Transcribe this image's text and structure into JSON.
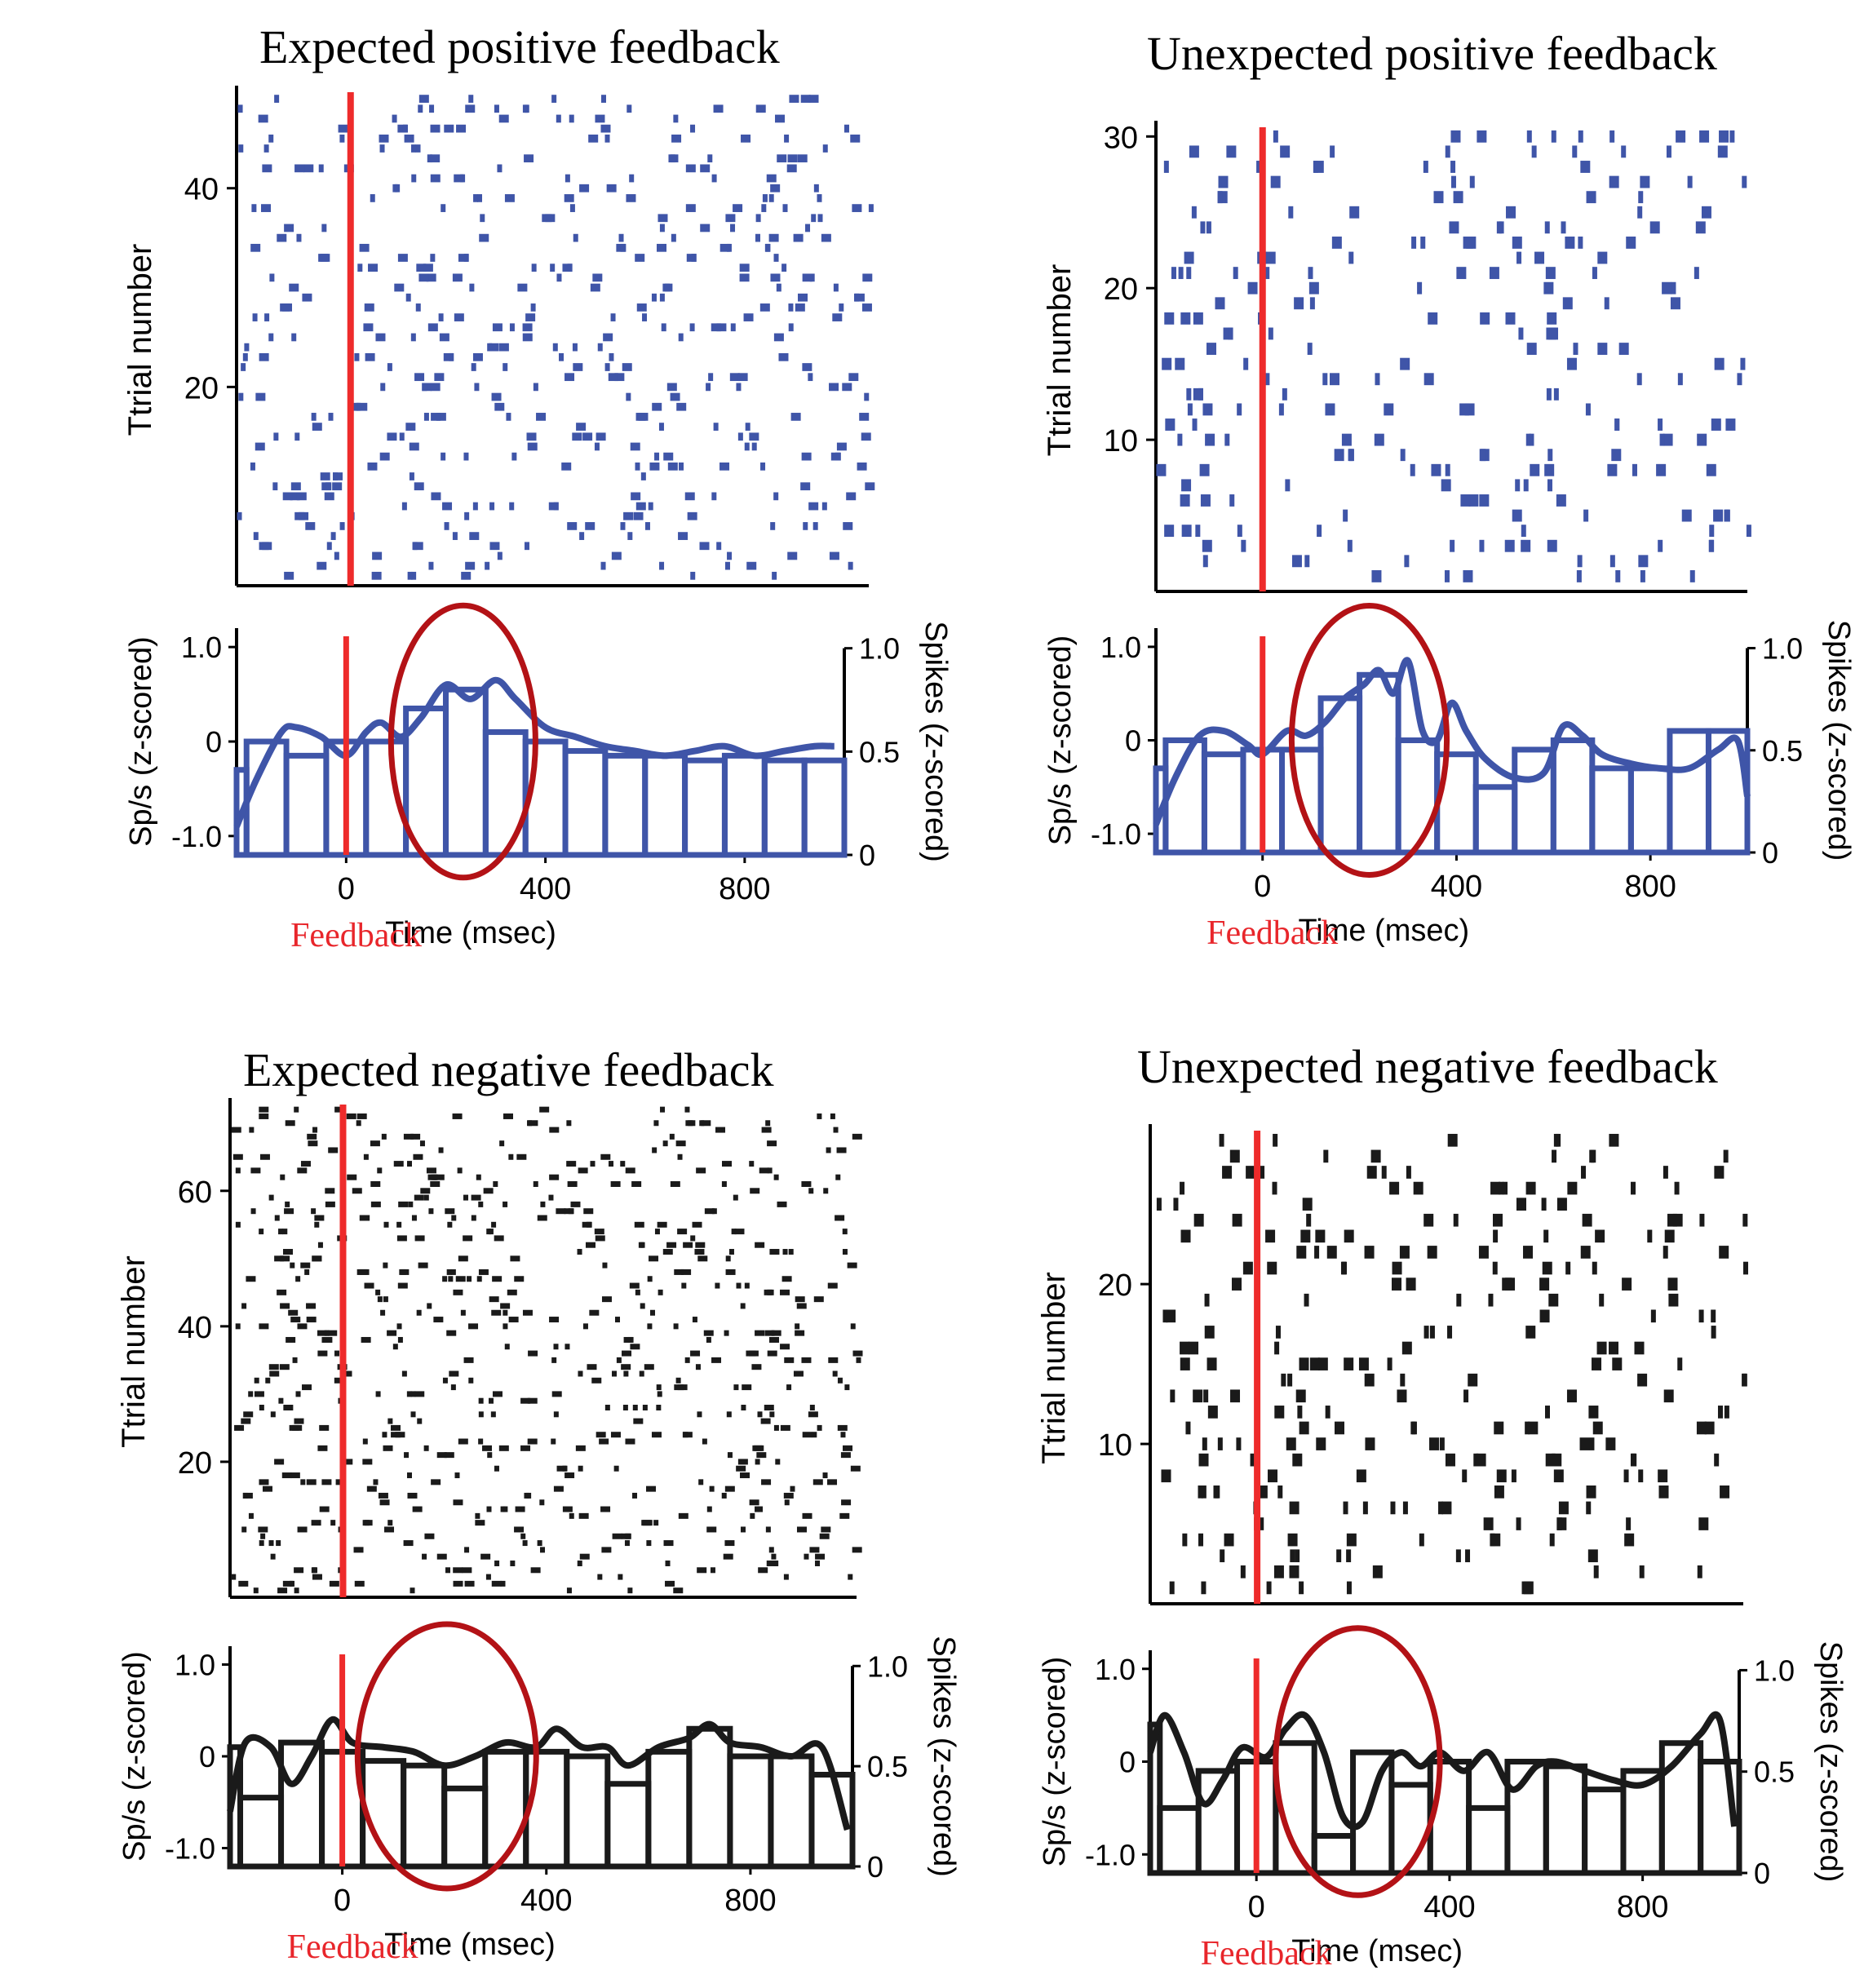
{
  "x_axis": {
    "label": "Time (msec)",
    "ticks": [
      0,
      400,
      800
    ],
    "range": [
      -220,
      1000
    ]
  },
  "raster_y_label": "Ttrial number",
  "psth_left_label": "Sp/s (z-scored)",
  "psth_right_label": "Spikes (z-scored)",
  "psth_left_ticks": [
    {
      "v": 1.0,
      "t": "1.0"
    },
    {
      "v": 0,
      "t": "0"
    },
    {
      "v": -1.0,
      "t": "-1.0"
    }
  ],
  "psth_right_ticks": [
    {
      "v": 1.0,
      "t": "1.0"
    },
    {
      "v": 0.5,
      "t": "0.5"
    },
    {
      "v": 0,
      "t": "0"
    }
  ],
  "feedback_label": "Feedback",
  "colors": {
    "blue": "#3f55a8",
    "black": "#1a1a1a",
    "feedback_line": "#ee2b2b",
    "ellipse": "#b31216",
    "feedback_text": "#e8262b"
  },
  "chart_data": [
    {
      "type": "raster+histogram",
      "title": "Expected positive feedback",
      "color": "blue",
      "trials": 49,
      "raster_ticks": [
        20,
        40
      ],
      "highlight_window_ms": [
        90,
        380
      ],
      "bin_centers_ms": [
        -240,
        -160,
        -80,
        0,
        80,
        160,
        240,
        320,
        400,
        480,
        560,
        640,
        720,
        800,
        880,
        960
      ],
      "psth_bins": [
        -0.3,
        0.0,
        -0.15,
        0.0,
        0.0,
        0.35,
        0.55,
        0.1,
        0.0,
        -0.1,
        -0.15,
        -0.15,
        -0.2,
        -0.15,
        -0.2,
        -0.2
      ],
      "psth_curve": [
        [
          -220,
          -0.9
        ],
        [
          -180,
          -0.4
        ],
        [
          -130,
          0.1
        ],
        [
          -100,
          0.15
        ],
        [
          -50,
          0.05
        ],
        [
          0,
          -0.15
        ],
        [
          40,
          0.1
        ],
        [
          70,
          0.2
        ],
        [
          110,
          0.05
        ],
        [
          150,
          0.25
        ],
        [
          200,
          0.6
        ],
        [
          250,
          0.45
        ],
        [
          300,
          0.65
        ],
        [
          340,
          0.45
        ],
        [
          400,
          0.15
        ],
        [
          460,
          0.05
        ],
        [
          520,
          -0.05
        ],
        [
          580,
          -0.1
        ],
        [
          640,
          -0.15
        ],
        [
          700,
          -0.1
        ],
        [
          760,
          -0.05
        ],
        [
          820,
          -0.15
        ],
        [
          880,
          -0.1
        ],
        [
          940,
          -0.05
        ],
        [
          980,
          -0.05
        ]
      ]
    },
    {
      "type": "raster+histogram",
      "title": "Unexpected positive feedback",
      "color": "blue",
      "trials": 30,
      "raster_ticks": [
        10,
        20,
        30
      ],
      "highlight_window_ms": [
        60,
        380
      ],
      "bin_centers_ms": [
        -240,
        -160,
        -80,
        0,
        80,
        160,
        240,
        320,
        400,
        480,
        560,
        640,
        720,
        800,
        880,
        960
      ],
      "psth_bins": [
        -0.3,
        0.0,
        -0.15,
        -0.1,
        -0.1,
        0.45,
        0.7,
        0.0,
        -0.15,
        -0.5,
        -0.1,
        0.0,
        -0.3,
        -0.3,
        0.1,
        0.1
      ],
      "psth_curve": [
        [
          -220,
          -0.9
        ],
        [
          -180,
          -0.4
        ],
        [
          -130,
          0.05
        ],
        [
          -80,
          0.1
        ],
        [
          -30,
          -0.05
        ],
        [
          0,
          -0.15
        ],
        [
          50,
          0.1
        ],
        [
          90,
          0.05
        ],
        [
          130,
          0.2
        ],
        [
          170,
          0.45
        ],
        [
          210,
          0.6
        ],
        [
          240,
          0.75
        ],
        [
          270,
          0.5
        ],
        [
          300,
          0.85
        ],
        [
          330,
          0.1
        ],
        [
          360,
          0.0
        ],
        [
          390,
          0.4
        ],
        [
          420,
          0.1
        ],
        [
          460,
          -0.2
        ],
        [
          520,
          -0.4
        ],
        [
          580,
          -0.35
        ],
        [
          620,
          0.15
        ],
        [
          660,
          0.05
        ],
        [
          700,
          -0.15
        ],
        [
          760,
          -0.25
        ],
        [
          820,
          -0.3
        ],
        [
          880,
          -0.3
        ],
        [
          940,
          -0.1
        ],
        [
          980,
          0.0
        ],
        [
          1000,
          -0.6
        ]
      ]
    },
    {
      "type": "raster+histogram",
      "title": "Expected negative feedback",
      "color": "black",
      "trials": 72,
      "raster_ticks": [
        20,
        40,
        60
      ],
      "highlight_window_ms": [
        30,
        380
      ],
      "bin_centers_ms": [
        -240,
        -160,
        -80,
        0,
        80,
        160,
        240,
        320,
        400,
        480,
        560,
        640,
        720,
        800,
        880,
        960
      ],
      "psth_bins": [
        0.1,
        -0.45,
        0.15,
        0.05,
        -0.05,
        -0.1,
        -0.35,
        0.05,
        0.05,
        0.0,
        -0.3,
        0.05,
        0.3,
        0.0,
        0.0,
        -0.2
      ],
      "psth_curve": [
        [
          -220,
          -0.6
        ],
        [
          -190,
          0.15
        ],
        [
          -140,
          0.1
        ],
        [
          -100,
          -0.3
        ],
        [
          -60,
          0.0
        ],
        [
          -20,
          0.4
        ],
        [
          20,
          0.15
        ],
        [
          80,
          0.1
        ],
        [
          140,
          0.05
        ],
        [
          200,
          -0.1
        ],
        [
          260,
          0.0
        ],
        [
          320,
          0.15
        ],
        [
          380,
          0.1
        ],
        [
          420,
          0.3
        ],
        [
          470,
          0.1
        ],
        [
          520,
          0.1
        ],
        [
          560,
          -0.1
        ],
        [
          620,
          0.1
        ],
        [
          680,
          0.2
        ],
        [
          720,
          0.35
        ],
        [
          760,
          0.15
        ],
        [
          820,
          0.1
        ],
        [
          880,
          0.0
        ],
        [
          940,
          0.1
        ],
        [
          990,
          -0.8
        ]
      ]
    },
    {
      "type": "raster+histogram",
      "title": "Unexpected negative feedback",
      "color": "black",
      "trials": 29,
      "raster_ticks": [
        10,
        20
      ],
      "highlight_window_ms": [
        40,
        380
      ],
      "bin_centers_ms": [
        -240,
        -160,
        -80,
        0,
        80,
        160,
        240,
        320,
        400,
        480,
        560,
        640,
        720,
        800,
        880,
        960
      ],
      "psth_bins": [
        0.4,
        -0.5,
        -0.1,
        0.0,
        0.2,
        -0.8,
        0.1,
        -0.25,
        0.0,
        -0.5,
        0.0,
        -0.05,
        -0.3,
        -0.1,
        0.2,
        0.0
      ],
      "psth_curve": [
        [
          -220,
          0.1
        ],
        [
          -190,
          0.5
        ],
        [
          -150,
          0.1
        ],
        [
          -110,
          -0.45
        ],
        [
          -70,
          -0.2
        ],
        [
          -30,
          0.15
        ],
        [
          20,
          0.05
        ],
        [
          60,
          0.35
        ],
        [
          100,
          0.5
        ],
        [
          140,
          0.1
        ],
        [
          180,
          -0.6
        ],
        [
          220,
          -0.65
        ],
        [
          260,
          -0.1
        ],
        [
          300,
          0.1
        ],
        [
          340,
          -0.05
        ],
        [
          380,
          0.1
        ],
        [
          430,
          -0.1
        ],
        [
          480,
          0.1
        ],
        [
          530,
          -0.3
        ],
        [
          580,
          -0.05
        ],
        [
          620,
          0.0
        ],
        [
          680,
          -0.1
        ],
        [
          740,
          -0.2
        ],
        [
          800,
          -0.25
        ],
        [
          860,
          -0.05
        ],
        [
          920,
          0.3
        ],
        [
          960,
          0.45
        ],
        [
          990,
          -0.7
        ]
      ]
    }
  ]
}
